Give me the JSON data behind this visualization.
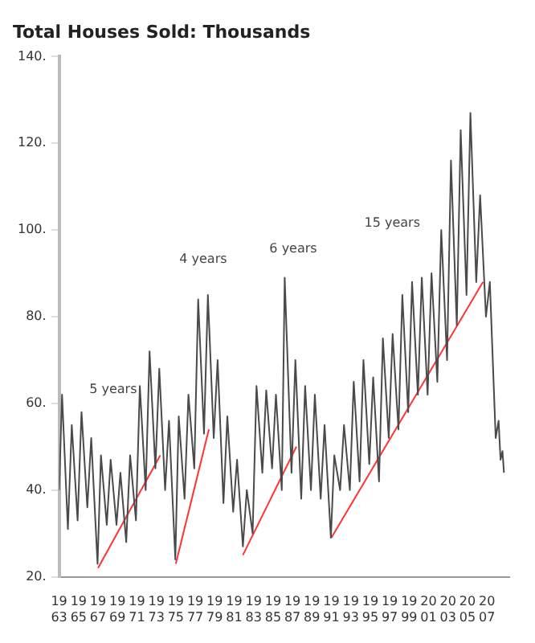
{
  "chart_data": {
    "type": "line",
    "title": "Total Houses Sold: Thousands",
    "series": [
      {
        "color": "#4a4a4a",
        "x": [
          1963.0,
          1963.3,
          1963.9,
          1964.3,
          1964.9,
          1965.3,
          1965.9,
          1966.3,
          1966.95,
          1967.3,
          1967.9,
          1968.3,
          1968.9,
          1969.3,
          1969.9,
          1970.3,
          1970.9,
          1971.3,
          1971.9,
          1972.3,
          1972.9,
          1973.3,
          1973.9,
          1974.3,
          1974.95,
          1975.3,
          1975.9,
          1976.3,
          1976.9,
          1977.3,
          1977.9,
          1978.3,
          1978.9,
          1979.3,
          1979.9,
          1980.3,
          1980.9,
          1981.3,
          1981.9,
          1982.3,
          1982.9,
          1983.3,
          1983.9,
          1984.3,
          1984.9,
          1985.3,
          1985.9,
          1986.2,
          1986.9,
          1987.3,
          1987.9,
          1988.3,
          1988.9,
          1989.3,
          1989.9,
          1990.3,
          1990.95,
          1991.3,
          1991.9,
          1992.3,
          1992.9,
          1993.3,
          1993.9,
          1994.3,
          1994.9,
          1995.3,
          1995.9,
          1996.3,
          1996.9,
          1997.3,
          1997.9,
          1998.3,
          1998.9,
          1999.3,
          1999.9,
          2000.3,
          2000.9,
          2001.3,
          2001.9,
          2002.3,
          2002.9,
          2003.3,
          2003.9,
          2004.3,
          2004.9,
          2005.3,
          2005.9,
          2006.3,
          2006.9,
          2007.3,
          2007.9,
          2008.2,
          2008.4,
          2008.6,
          2008.75
        ],
        "values": [
          40,
          62,
          31,
          55,
          33,
          58,
          36,
          52,
          23,
          48,
          32,
          47,
          32,
          44,
          28,
          48,
          33,
          64,
          40,
          72,
          45,
          68,
          40,
          56,
          24,
          57,
          38,
          62,
          45,
          84,
          53,
          85,
          52,
          70,
          37,
          57,
          35,
          47,
          27,
          40,
          30,
          64,
          44,
          63,
          45,
          62,
          40,
          89,
          44,
          70,
          38,
          64,
          40,
          62,
          38,
          55,
          29,
          48,
          40,
          55,
          40,
          65,
          42,
          70,
          46,
          66,
          42,
          75,
          52,
          76,
          54,
          85,
          58,
          88,
          62,
          89,
          62,
          90,
          65,
          100,
          70,
          116,
          78,
          123,
          85,
          127,
          88,
          108,
          80,
          88,
          52,
          56,
          47,
          49,
          44
        ]
      },
      {
        "color": "#ff3333",
        "x": [
          1967.0,
          1973.4
        ],
        "values": [
          22,
          48
        ]
      },
      {
        "color": "#ff3333",
        "x": [
          1975.0,
          1978.4
        ],
        "values": [
          23,
          54
        ]
      },
      {
        "color": "#ff3333",
        "x": [
          1981.9,
          1987.4
        ],
        "values": [
          25,
          50
        ]
      },
      {
        "color": "#ff3333",
        "x": [
          1991.0,
          2006.6
        ],
        "values": [
          29,
          88
        ]
      }
    ],
    "annotations": [
      "5 years",
      "4 years",
      "6 years",
      "15 years"
    ],
    "xlim": [
      1963,
      2009.3
    ],
    "xticks": [
      1963,
      1965,
      1967,
      1969,
      1971,
      1973,
      1975,
      1977,
      1979,
      1981,
      1983,
      1985,
      1987,
      1989,
      1991,
      1993,
      1995,
      1997,
      1999,
      2001,
      2003,
      2005,
      2007
    ],
    "ylim": [
      20,
      140
    ],
    "yticks": [
      {
        "value": 20,
        "label": "20."
      },
      {
        "value": 40,
        "label": "40."
      },
      {
        "value": 60,
        "label": "60."
      },
      {
        "value": 80,
        "label": "80."
      },
      {
        "value": 100,
        "label": "100."
      },
      {
        "value": 120,
        "label": "120."
      },
      {
        "value": 140,
        "label": "140."
      }
    ],
    "grid": false,
    "legend": false,
    "marker": "none",
    "line_style": "solid"
  }
}
